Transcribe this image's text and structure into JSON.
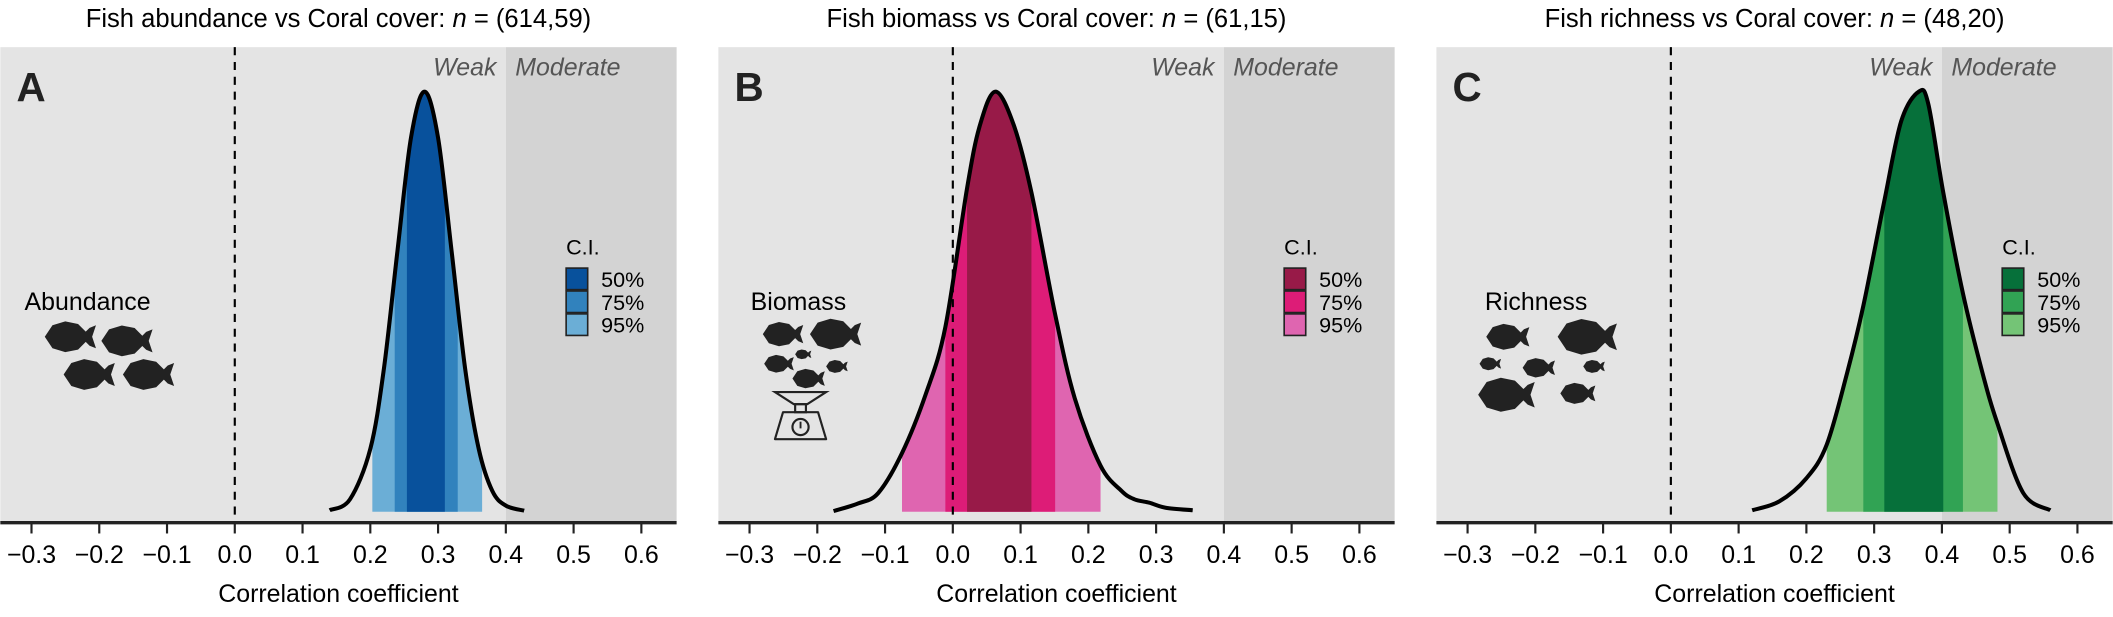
{
  "chart_data": [
    {
      "type": "area",
      "panel_letter": "A",
      "title": "Fish abundance vs Coral cover: n = (614,59)",
      "xlabel": "Correlation coefficient",
      "ylabel": "",
      "xlim": [
        -0.346,
        0.652
      ],
      "xticks": [
        -0.3,
        -0.2,
        -0.1,
        0.0,
        0.1,
        0.2,
        0.3,
        0.4,
        0.5,
        0.6
      ],
      "tick_labels": [
        "−0.3",
        "−0.2",
        "−0.1",
        "0.0",
        "0.1",
        "0.2",
        "0.3",
        "0.4",
        "0.5",
        "0.6"
      ],
      "reference_line": 0,
      "zones": [
        {
          "label": "Weak",
          "from": -0.346,
          "to": 0.4,
          "color": "#e4e4e4"
        },
        {
          "label": "Moderate",
          "from": 0.4,
          "to": 0.652,
          "color": "#d3d3d3"
        }
      ],
      "icon_label": "Abundance",
      "icon": "fish-school-icon",
      "legend_title": "C.I.",
      "legend_placement": "right",
      "intervals": [
        {
          "label": "95%",
          "lower": 0.203,
          "upper": 0.365,
          "color": "#6baed6"
        },
        {
          "label": "75%",
          "lower": 0.236,
          "upper": 0.329,
          "color": "#3182bd"
        },
        {
          "label": "50%",
          "lower": 0.254,
          "upper": 0.31,
          "color": "#08519c"
        }
      ],
      "peak": 0.28,
      "density": [
        [
          0.14,
          0.004
        ],
        [
          0.17,
          0.03
        ],
        [
          0.2,
          0.15
        ],
        [
          0.22,
          0.34
        ],
        [
          0.24,
          0.62
        ],
        [
          0.26,
          0.89
        ],
        [
          0.28,
          1
        ],
        [
          0.3,
          0.89
        ],
        [
          0.32,
          0.62
        ],
        [
          0.34,
          0.34
        ],
        [
          0.36,
          0.15
        ],
        [
          0.38,
          0.05
        ],
        [
          0.4,
          0.015
        ],
        [
          0.427,
          0.003
        ]
      ]
    },
    {
      "type": "area",
      "panel_letter": "B",
      "title": "Fish biomass vs Coral cover: n = (61,15)",
      "xlabel": "Correlation coefficient",
      "ylabel": "",
      "xlim": [
        -0.346,
        0.652
      ],
      "xticks": [
        -0.3,
        -0.2,
        -0.1,
        0.0,
        0.1,
        0.2,
        0.3,
        0.4,
        0.5,
        0.6
      ],
      "tick_labels": [
        "−0.3",
        "−0.2",
        "−0.1",
        "0.0",
        "0.1",
        "0.2",
        "0.3",
        "0.4",
        "0.5",
        "0.6"
      ],
      "reference_line": 0,
      "zones": [
        {
          "label": "Weak",
          "from": -0.346,
          "to": 0.4,
          "color": "#e4e4e4"
        },
        {
          "label": "Moderate",
          "from": 0.4,
          "to": 0.652,
          "color": "#d3d3d3"
        }
      ],
      "icon_label": "Biomass",
      "icon": "fish-scale-icon",
      "legend_title": "C.I.",
      "legend_placement": "right",
      "intervals": [
        {
          "label": "95%",
          "lower": -0.075,
          "upper": 0.218,
          "color": "#df65b0"
        },
        {
          "label": "75%",
          "lower": -0.011,
          "upper": 0.151,
          "color": "#dd1c77"
        },
        {
          "label": "50%",
          "lower": 0.021,
          "upper": 0.116,
          "color": "#981a48"
        }
      ],
      "peak": 0.063,
      "density": [
        [
          -0.176,
          0.002
        ],
        [
          -0.14,
          0.02
        ],
        [
          -0.11,
          0.045
        ],
        [
          -0.075,
          0.14
        ],
        [
          -0.04,
          0.28
        ],
        [
          -0.011,
          0.44
        ],
        [
          0.021,
          0.77
        ],
        [
          0.04,
          0.92
        ],
        [
          0.063,
          1
        ],
        [
          0.09,
          0.92
        ],
        [
          0.116,
          0.76
        ],
        [
          0.151,
          0.47
        ],
        [
          0.18,
          0.27
        ],
        [
          0.218,
          0.11
        ],
        [
          0.249,
          0.05
        ],
        [
          0.268,
          0.03
        ],
        [
          0.29,
          0.022
        ],
        [
          0.314,
          0.01
        ],
        [
          0.354,
          0.004
        ]
      ]
    },
    {
      "type": "area",
      "panel_letter": "C",
      "title": "Fish richness vs Coral cover: n = (48,20)",
      "xlabel": "Correlation coefficient",
      "ylabel": "",
      "xlim": [
        -0.346,
        0.652
      ],
      "xticks": [
        -0.3,
        -0.2,
        -0.1,
        0.0,
        0.1,
        0.2,
        0.3,
        0.4,
        0.5,
        0.6
      ],
      "tick_labels": [
        "−0.3",
        "−0.2",
        "−0.1",
        "0.0",
        "0.1",
        "0.2",
        "0.3",
        "0.4",
        "0.5",
        "0.6"
      ],
      "reference_line": 0,
      "zones": [
        {
          "label": "Weak",
          "from": -0.346,
          "to": 0.4,
          "color": "#e4e4e4"
        },
        {
          "label": "Moderate",
          "from": 0.4,
          "to": 0.652,
          "color": "#d3d3d3"
        }
      ],
      "icon_label": "Richness",
      "icon": "fish-species-icon",
      "legend_title": "C.I.",
      "legend_placement": "right",
      "intervals": [
        {
          "label": "95%",
          "lower": 0.23,
          "upper": 0.482,
          "color": "#74c476"
        },
        {
          "label": "75%",
          "lower": 0.284,
          "upper": 0.431,
          "color": "#31a354"
        },
        {
          "label": "50%",
          "lower": 0.315,
          "upper": 0.402,
          "color": "#06703a"
        }
      ],
      "peak": 0.366,
      "density": [
        [
          0.12,
          0.004
        ],
        [
          0.16,
          0.025
        ],
        [
          0.2,
          0.08
        ],
        [
          0.23,
          0.16
        ],
        [
          0.26,
          0.33
        ],
        [
          0.284,
          0.49
        ],
        [
          0.315,
          0.74
        ],
        [
          0.34,
          0.93
        ],
        [
          0.366,
          1
        ],
        [
          0.38,
          0.97
        ],
        [
          0.402,
          0.76
        ],
        [
          0.431,
          0.52
        ],
        [
          0.46,
          0.33
        ],
        [
          0.482,
          0.21
        ],
        [
          0.52,
          0.045
        ],
        [
          0.56,
          0.004
        ]
      ]
    }
  ]
}
